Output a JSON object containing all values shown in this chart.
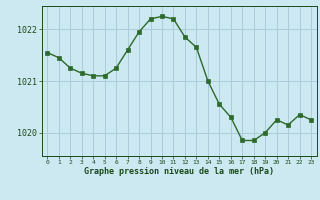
{
  "x": [
    0,
    1,
    2,
    3,
    4,
    5,
    6,
    7,
    8,
    9,
    10,
    11,
    12,
    13,
    14,
    15,
    16,
    17,
    18,
    19,
    20,
    21,
    22,
    23
  ],
  "y": [
    1021.55,
    1021.45,
    1021.25,
    1021.15,
    1021.1,
    1021.1,
    1021.25,
    1021.6,
    1021.95,
    1022.2,
    1022.25,
    1022.2,
    1021.85,
    1021.65,
    1021.0,
    1020.55,
    1020.3,
    1019.85,
    1019.85,
    1020.0,
    1020.25,
    1020.15,
    1020.35,
    1020.25
  ],
  "line_color": "#2d6a2d",
  "marker_color": "#2d6a2d",
  "bg_color": "#cce8f0",
  "grid_color": "#aaccda",
  "text_color": "#1a4a1a",
  "xlabel": "Graphe pression niveau de la mer (hPa)",
  "yticks": [
    1020,
    1021,
    1022
  ],
  "ylim": [
    1019.55,
    1022.45
  ],
  "xlim": [
    -0.5,
    23.5
  ]
}
